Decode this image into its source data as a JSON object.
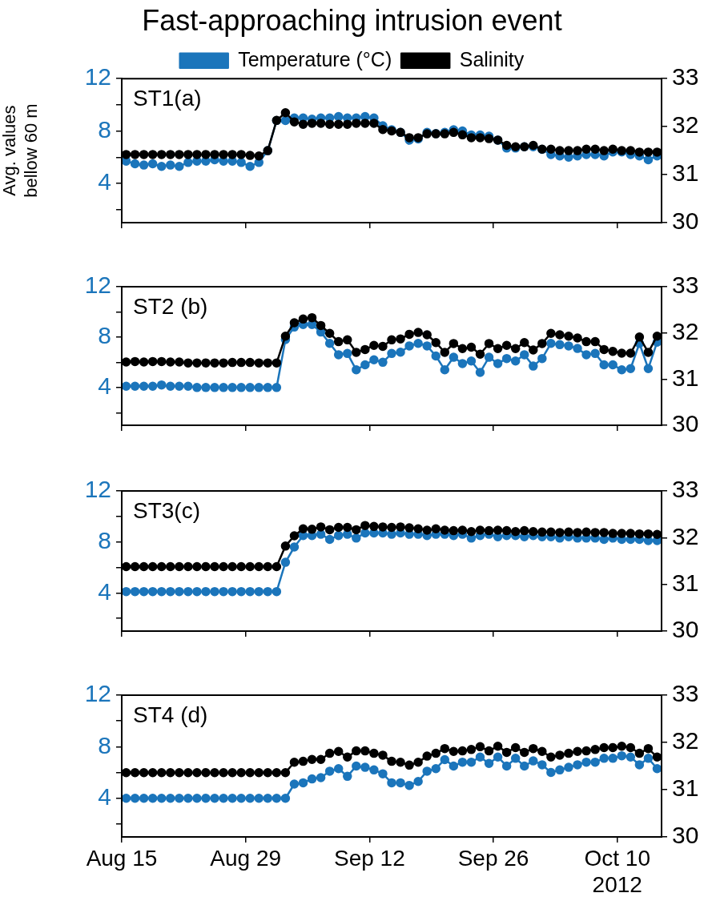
{
  "chart_data": [
    {
      "type": "line",
      "title": "Fast-approaching intrusion event",
      "legend": "top",
      "ylabel": "Avg. values\nbellow 60 m",
      "annotations": [
        "ST1(a)"
      ],
      "marker": "circle",
      "tick_labels": "y",
      "x": [
        "2012-08-15T12:00",
        "2012-08-16T12:00",
        "2012-08-17T12:00",
        "2012-08-18T12:00",
        "2012-08-19T12:00",
        "2012-08-20T12:00",
        "2012-08-21T12:00",
        "2012-08-22T12:00",
        "2012-08-23T12:00",
        "2012-08-24T12:00",
        "2012-08-25T12:00",
        "2012-08-26T12:00",
        "2012-08-27T12:00",
        "2012-08-28T12:00",
        "2012-08-29T12:00",
        "2012-08-30T12:00",
        "2012-08-31T12:00",
        "2012-09-01T12:00",
        "2012-09-02T12:00",
        "2012-09-03T12:00",
        "2012-09-04T12:00",
        "2012-09-05T12:00",
        "2012-09-06T12:00",
        "2012-09-07T12:00",
        "2012-09-08T12:00",
        "2012-09-09T12:00",
        "2012-09-10T12:00",
        "2012-09-11T12:00",
        "2012-09-12T12:00",
        "2012-09-13T12:00",
        "2012-09-14T12:00",
        "2012-09-15T12:00",
        "2012-09-16T12:00",
        "2012-09-17T12:00",
        "2012-09-18T12:00",
        "2012-09-19T12:00",
        "2012-09-20T12:00",
        "2012-09-21T12:00",
        "2012-09-22T12:00",
        "2012-09-23T12:00",
        "2012-09-24T12:00",
        "2012-09-25T12:00",
        "2012-09-26T12:00",
        "2012-09-27T12:00",
        "2012-09-28T12:00",
        "2012-09-29T12:00",
        "2012-09-30T12:00",
        "2012-10-01T12:00",
        "2012-10-02T12:00",
        "2012-10-03T12:00",
        "2012-10-04T12:00",
        "2012-10-05T12:00",
        "2012-10-06T12:00",
        "2012-10-07T12:00",
        "2012-10-08T12:00",
        "2012-10-09T12:00",
        "2012-10-10T12:00",
        "2012-10-11T12:00",
        "2012-10-12T12:00",
        "2012-10-13T12:00",
        "2012-10-14T12:00"
      ],
      "xlim": [
        "2012-08-15",
        "2012-10-15"
      ],
      "xticks": [
        {
          "value": "2012-08-15",
          "label": null
        },
        {
          "value": "2012-08-29",
          "label": null
        },
        {
          "value": "2012-09-12",
          "label": null
        },
        {
          "value": "2012-09-26",
          "label": null
        },
        {
          "value": "2012-10-10",
          "label": null
        }
      ],
      "ylim": [
        1,
        12
      ],
      "yticks": [
        {
          "value": 2,
          "label": null
        },
        4,
        {
          "value": 6,
          "label": null
        },
        8,
        {
          "value": 10,
          "label": null
        },
        12
      ],
      "y2lim": [
        30,
        33
      ],
      "y2ticks": [
        30,
        31,
        32,
        33
      ],
      "series": [
        {
          "name": "Temperature (°C)",
          "color": "#1b75bb",
          "values": [
            5.7,
            5.5,
            5.4,
            5.5,
            5.3,
            5.4,
            5.3,
            5.6,
            5.7,
            5.7,
            5.8,
            5.7,
            5.7,
            5.6,
            5.3,
            5.6,
            6.5,
            8.8,
            8.8,
            9.0,
            9.0,
            8.9,
            9.0,
            9.0,
            9.1,
            9.0,
            9.0,
            9.1,
            9.0,
            8.4,
            8.1,
            7.9,
            7.3,
            7.4,
            7.9,
            7.8,
            7.9,
            8.1,
            8.0,
            7.7,
            7.7,
            7.6,
            7.3,
            6.7,
            6.7,
            6.8,
            6.8,
            6.6,
            6.2,
            6.1,
            6.0,
            6.1,
            6.2,
            6.2,
            6.1,
            6.4,
            6.4,
            6.2,
            6.1,
            5.8,
            6.1
          ]
        },
        {
          "name": "Salinity",
          "color": "#000000",
          "axis": "y2",
          "values": [
            31.42,
            31.42,
            31.42,
            31.42,
            31.42,
            31.42,
            31.42,
            31.42,
            31.42,
            31.42,
            31.42,
            31.42,
            31.42,
            31.42,
            31.4,
            31.39,
            31.5,
            32.13,
            32.29,
            32.1,
            32.05,
            32.07,
            32.07,
            32.05,
            32.05,
            32.05,
            32.07,
            32.07,
            32.07,
            31.94,
            31.91,
            31.88,
            31.77,
            31.77,
            31.85,
            31.85,
            31.85,
            31.88,
            31.83,
            31.77,
            31.77,
            31.75,
            31.72,
            31.61,
            31.58,
            31.58,
            31.61,
            31.53,
            31.53,
            31.5,
            31.5,
            31.5,
            31.53,
            31.53,
            31.5,
            31.53,
            31.5,
            31.5,
            31.47,
            31.47,
            31.47
          ]
        }
      ]
    },
    {
      "type": "line",
      "annotations": [
        "ST2 (b)"
      ],
      "marker": "circle",
      "tick_labels": "y",
      "x": [
        "2012-08-15T12:00",
        "2012-08-16T12:00",
        "2012-08-17T12:00",
        "2012-08-18T12:00",
        "2012-08-19T12:00",
        "2012-08-20T12:00",
        "2012-08-21T12:00",
        "2012-08-22T12:00",
        "2012-08-23T12:00",
        "2012-08-24T12:00",
        "2012-08-25T12:00",
        "2012-08-26T12:00",
        "2012-08-27T12:00",
        "2012-08-28T12:00",
        "2012-08-29T12:00",
        "2012-08-30T12:00",
        "2012-08-31T12:00",
        "2012-09-01T12:00",
        "2012-09-02T12:00",
        "2012-09-03T12:00",
        "2012-09-04T12:00",
        "2012-09-05T12:00",
        "2012-09-06T12:00",
        "2012-09-07T12:00",
        "2012-09-08T12:00",
        "2012-09-09T12:00",
        "2012-09-10T12:00",
        "2012-09-11T12:00",
        "2012-09-12T12:00",
        "2012-09-13T12:00",
        "2012-09-14T12:00",
        "2012-09-15T12:00",
        "2012-09-16T12:00",
        "2012-09-17T12:00",
        "2012-09-18T12:00",
        "2012-09-19T12:00",
        "2012-09-20T12:00",
        "2012-09-21T12:00",
        "2012-09-22T12:00",
        "2012-09-23T12:00",
        "2012-09-24T12:00",
        "2012-09-25T12:00",
        "2012-09-26T12:00",
        "2012-09-27T12:00",
        "2012-09-28T12:00",
        "2012-09-29T12:00",
        "2012-09-30T12:00",
        "2012-10-01T12:00",
        "2012-10-02T12:00",
        "2012-10-03T12:00",
        "2012-10-04T12:00",
        "2012-10-05T12:00",
        "2012-10-06T12:00",
        "2012-10-07T12:00",
        "2012-10-08T12:00",
        "2012-10-09T12:00",
        "2012-10-10T12:00",
        "2012-10-11T12:00",
        "2012-10-12T12:00",
        "2012-10-13T12:00",
        "2012-10-14T12:00"
      ],
      "xlim": [
        "2012-08-15",
        "2012-10-15"
      ],
      "xticks": [
        {
          "value": "2012-08-15",
          "label": null
        },
        {
          "value": "2012-08-29",
          "label": null
        },
        {
          "value": "2012-09-12",
          "label": null
        },
        {
          "value": "2012-09-26",
          "label": null
        },
        {
          "value": "2012-10-10",
          "label": null
        }
      ],
      "ylim": [
        1,
        12
      ],
      "yticks": [
        {
          "value": 2,
          "label": null
        },
        4,
        {
          "value": 6,
          "label": null
        },
        8,
        {
          "value": 10,
          "label": null
        },
        12
      ],
      "y2lim": [
        30,
        33
      ],
      "y2ticks": [
        30,
        31,
        32,
        33
      ],
      "series": [
        {
          "color": "#1b75bb",
          "values": [
            4.1,
            4.1,
            4.1,
            4.1,
            4.2,
            4.1,
            4.1,
            4.1,
            4.0,
            4.0,
            4.0,
            4.0,
            4.0,
            4.0,
            4.0,
            4.0,
            4.0,
            4.0,
            7.8,
            8.8,
            9.0,
            9.0,
            8.4,
            7.5,
            6.6,
            6.7,
            5.4,
            5.8,
            6.2,
            6.0,
            6.7,
            6.8,
            7.3,
            7.5,
            7.3,
            6.5,
            5.4,
            6.4,
            5.9,
            6.1,
            5.2,
            6.4,
            5.9,
            6.3,
            6.1,
            6.6,
            5.7,
            6.3,
            7.5,
            7.4,
            7.3,
            7.1,
            6.6,
            6.7,
            5.8,
            5.8,
            5.4,
            5.5,
            7.5,
            5.5,
            7.6
          ]
        },
        {
          "color": "#000000",
          "axis": "y2",
          "values": [
            31.37,
            31.38,
            31.37,
            31.38,
            31.38,
            31.37,
            31.37,
            31.35,
            31.35,
            31.35,
            31.35,
            31.35,
            31.36,
            31.36,
            31.36,
            31.35,
            31.35,
            31.35,
            31.93,
            32.22,
            32.3,
            32.33,
            32.16,
            31.99,
            31.81,
            31.85,
            31.58,
            31.64,
            31.73,
            31.71,
            31.85,
            31.87,
            31.97,
            32.01,
            31.96,
            31.79,
            31.58,
            31.77,
            31.66,
            31.69,
            31.54,
            31.77,
            31.66,
            31.73,
            31.66,
            31.79,
            31.63,
            31.77,
            31.99,
            31.96,
            31.93,
            31.89,
            31.81,
            31.81,
            31.64,
            31.6,
            31.56,
            31.56,
            31.91,
            31.58,
            31.93
          ]
        }
      ]
    },
    {
      "type": "line",
      "annotations": [
        "ST3(c)"
      ],
      "marker": "circle",
      "tick_labels": "y",
      "x": [
        "2012-08-15T12:00",
        "2012-08-16T12:00",
        "2012-08-17T12:00",
        "2012-08-18T12:00",
        "2012-08-19T12:00",
        "2012-08-20T12:00",
        "2012-08-21T12:00",
        "2012-08-22T12:00",
        "2012-08-23T12:00",
        "2012-08-24T12:00",
        "2012-08-25T12:00",
        "2012-08-26T12:00",
        "2012-08-27T12:00",
        "2012-08-28T12:00",
        "2012-08-29T12:00",
        "2012-08-30T12:00",
        "2012-08-31T12:00",
        "2012-09-01T12:00",
        "2012-09-02T12:00",
        "2012-09-03T12:00",
        "2012-09-04T12:00",
        "2012-09-05T12:00",
        "2012-09-06T12:00",
        "2012-09-07T12:00",
        "2012-09-08T12:00",
        "2012-09-09T12:00",
        "2012-09-10T12:00",
        "2012-09-11T12:00",
        "2012-09-12T12:00",
        "2012-09-13T12:00",
        "2012-09-14T12:00",
        "2012-09-15T12:00",
        "2012-09-16T12:00",
        "2012-09-17T12:00",
        "2012-09-18T12:00",
        "2012-09-19T12:00",
        "2012-09-20T12:00",
        "2012-09-21T12:00",
        "2012-09-22T12:00",
        "2012-09-23T12:00",
        "2012-09-24T12:00",
        "2012-09-25T12:00",
        "2012-09-26T12:00",
        "2012-09-27T12:00",
        "2012-09-28T12:00",
        "2012-09-29T12:00",
        "2012-09-30T12:00",
        "2012-10-01T12:00",
        "2012-10-02T12:00",
        "2012-10-03T12:00",
        "2012-10-04T12:00",
        "2012-10-05T12:00",
        "2012-10-06T12:00",
        "2012-10-07T12:00",
        "2012-10-08T12:00",
        "2012-10-09T12:00",
        "2012-10-10T12:00",
        "2012-10-11T12:00",
        "2012-10-12T12:00",
        "2012-10-13T12:00",
        "2012-10-14T12:00"
      ],
      "xlim": [
        "2012-08-15",
        "2012-10-15"
      ],
      "xticks": [
        {
          "value": "2012-08-15",
          "label": null
        },
        {
          "value": "2012-08-29",
          "label": null
        },
        {
          "value": "2012-09-12",
          "label": null
        },
        {
          "value": "2012-09-26",
          "label": null
        },
        {
          "value": "2012-10-10",
          "label": null
        }
      ],
      "ylim": [
        1,
        12
      ],
      "yticks": [
        {
          "value": 2,
          "label": null
        },
        4,
        {
          "value": 6,
          "label": null
        },
        8,
        {
          "value": 10,
          "label": null
        },
        12
      ],
      "y2lim": [
        30,
        33
      ],
      "y2ticks": [
        30,
        31,
        32,
        33
      ],
      "series": [
        {
          "color": "#1b75bb",
          "values": [
            4.1,
            4.1,
            4.1,
            4.1,
            4.1,
            4.1,
            4.1,
            4.1,
            4.1,
            4.1,
            4.1,
            4.1,
            4.1,
            4.1,
            4.1,
            4.1,
            4.1,
            4.1,
            6.4,
            7.6,
            8.5,
            8.5,
            8.6,
            8.2,
            8.5,
            8.6,
            8.3,
            8.7,
            8.7,
            8.7,
            8.6,
            8.7,
            8.6,
            8.6,
            8.5,
            8.6,
            8.6,
            8.5,
            8.6,
            8.3,
            8.5,
            8.6,
            8.4,
            8.5,
            8.5,
            8.4,
            8.5,
            8.4,
            8.4,
            8.3,
            8.4,
            8.3,
            8.3,
            8.3,
            8.2,
            8.3,
            8.2,
            8.2,
            8.2,
            8.1,
            8.1
          ]
        },
        {
          "color": "#000000",
          "axis": "y2",
          "values": [
            31.38,
            31.38,
            31.38,
            31.38,
            31.38,
            31.38,
            31.38,
            31.38,
            31.38,
            31.38,
            31.38,
            31.38,
            31.38,
            31.38,
            31.38,
            31.38,
            31.38,
            31.38,
            31.82,
            32.04,
            32.19,
            32.18,
            32.23,
            32.17,
            32.22,
            32.22,
            32.17,
            32.26,
            32.24,
            32.23,
            32.22,
            32.23,
            32.21,
            32.19,
            32.16,
            32.19,
            32.16,
            32.15,
            32.16,
            32.13,
            32.16,
            32.15,
            32.16,
            32.15,
            32.13,
            32.15,
            32.13,
            32.12,
            32.12,
            32.11,
            32.12,
            32.11,
            32.12,
            32.11,
            32.11,
            32.09,
            32.09,
            32.09,
            32.08,
            32.08,
            32.07
          ]
        }
      ]
    },
    {
      "type": "line",
      "annotations": [
        "ST4 (d)"
      ],
      "marker": "circle",
      "x": [
        "2012-08-15T12:00",
        "2012-08-16T12:00",
        "2012-08-17T12:00",
        "2012-08-18T12:00",
        "2012-08-19T12:00",
        "2012-08-20T12:00",
        "2012-08-21T12:00",
        "2012-08-22T12:00",
        "2012-08-23T12:00",
        "2012-08-24T12:00",
        "2012-08-25T12:00",
        "2012-08-26T12:00",
        "2012-08-27T12:00",
        "2012-08-28T12:00",
        "2012-08-29T12:00",
        "2012-08-30T12:00",
        "2012-08-31T12:00",
        "2012-09-01T12:00",
        "2012-09-02T12:00",
        "2012-09-03T12:00",
        "2012-09-04T12:00",
        "2012-09-05T12:00",
        "2012-09-06T12:00",
        "2012-09-07T12:00",
        "2012-09-08T12:00",
        "2012-09-09T12:00",
        "2012-09-10T12:00",
        "2012-09-11T12:00",
        "2012-09-12T12:00",
        "2012-09-13T12:00",
        "2012-09-14T12:00",
        "2012-09-15T12:00",
        "2012-09-16T12:00",
        "2012-09-17T12:00",
        "2012-09-18T12:00",
        "2012-09-19T12:00",
        "2012-09-20T12:00",
        "2012-09-21T12:00",
        "2012-09-22T12:00",
        "2012-09-23T12:00",
        "2012-09-24T12:00",
        "2012-09-25T12:00",
        "2012-09-26T12:00",
        "2012-09-27T12:00",
        "2012-09-28T12:00",
        "2012-09-29T12:00",
        "2012-09-30T12:00",
        "2012-10-01T12:00",
        "2012-10-02T12:00",
        "2012-10-03T12:00",
        "2012-10-04T12:00",
        "2012-10-05T12:00",
        "2012-10-06T12:00",
        "2012-10-07T12:00",
        "2012-10-08T12:00",
        "2012-10-09T12:00",
        "2012-10-10T12:00",
        "2012-10-11T12:00",
        "2012-10-12T12:00",
        "2012-10-13T12:00",
        "2012-10-14T12:00"
      ],
      "xlim": [
        "2012-08-15",
        "2012-10-15"
      ],
      "xticks": [
        {
          "value": "2012-08-15",
          "label": "Aug 15"
        },
        {
          "value": "2012-08-29",
          "label": "Aug 29"
        },
        {
          "value": "2012-09-12",
          "label": "Sep 12"
        },
        {
          "value": "2012-09-26",
          "label": "Sep 26"
        },
        {
          "value": "2012-10-10",
          "label": "Oct 10\n2012"
        }
      ],
      "ylim": [
        1,
        12
      ],
      "yticks": [
        {
          "value": 2,
          "label": null
        },
        4,
        {
          "value": 6,
          "label": null
        },
        8,
        {
          "value": 10,
          "label": null
        },
        12
      ],
      "y2lim": [
        30,
        33
      ],
      "y2ticks": [
        30,
        31,
        32,
        33
      ],
      "series": [
        {
          "color": "#1b75bb",
          "values": [
            4.0,
            4.0,
            4.0,
            4.0,
            4.0,
            4.0,
            4.0,
            4.0,
            4.0,
            4.0,
            4.0,
            4.0,
            4.0,
            4.0,
            4.0,
            4.0,
            4.0,
            4.0,
            4.0,
            5.1,
            5.2,
            5.5,
            5.6,
            6.1,
            6.3,
            5.7,
            6.5,
            6.4,
            6.2,
            5.9,
            5.2,
            5.2,
            5.0,
            5.3,
            6.1,
            6.3,
            7.0,
            6.5,
            6.8,
            6.8,
            7.2,
            6.7,
            7.2,
            6.5,
            7.1,
            6.5,
            6.9,
            6.6,
            6.0,
            6.2,
            6.4,
            6.6,
            6.8,
            6.8,
            7.1,
            7.1,
            7.3,
            7.2,
            6.6,
            7.1,
            6.3
          ]
        },
        {
          "color": "#000000",
          "axis": "y2",
          "values": [
            31.36,
            31.36,
            31.36,
            31.36,
            31.36,
            31.36,
            31.36,
            31.36,
            31.36,
            31.36,
            31.36,
            31.36,
            31.36,
            31.36,
            31.36,
            31.36,
            31.36,
            31.36,
            31.36,
            31.58,
            31.6,
            31.64,
            31.64,
            31.77,
            31.81,
            31.69,
            31.82,
            31.82,
            31.77,
            31.73,
            31.6,
            31.58,
            31.52,
            31.58,
            31.71,
            31.77,
            31.87,
            31.81,
            31.82,
            31.85,
            31.91,
            31.82,
            31.92,
            31.79,
            31.89,
            31.79,
            31.87,
            31.81,
            31.69,
            31.73,
            31.77,
            31.81,
            31.82,
            31.85,
            31.89,
            31.89,
            31.92,
            31.89,
            31.77,
            31.87,
            31.69
          ]
        }
      ]
    }
  ]
}
